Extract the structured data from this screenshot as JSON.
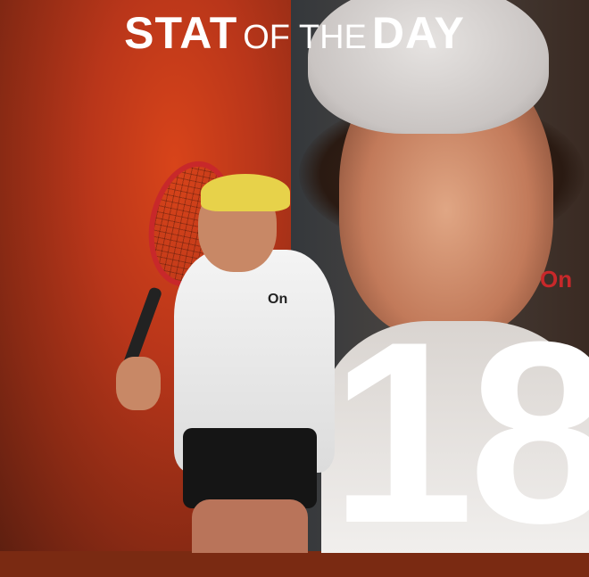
{
  "header": {
    "title_bold_1": "STAT",
    "title_light": "OF THE",
    "title_bold_2": "DAY"
  },
  "stat": {
    "value": "18"
  },
  "branding": {
    "shirt_logo": "On"
  },
  "colors": {
    "left_panel": "#b9361a",
    "right_panel": "#3a3a3c",
    "text": "#ffffff",
    "logo": "#c8282a"
  }
}
